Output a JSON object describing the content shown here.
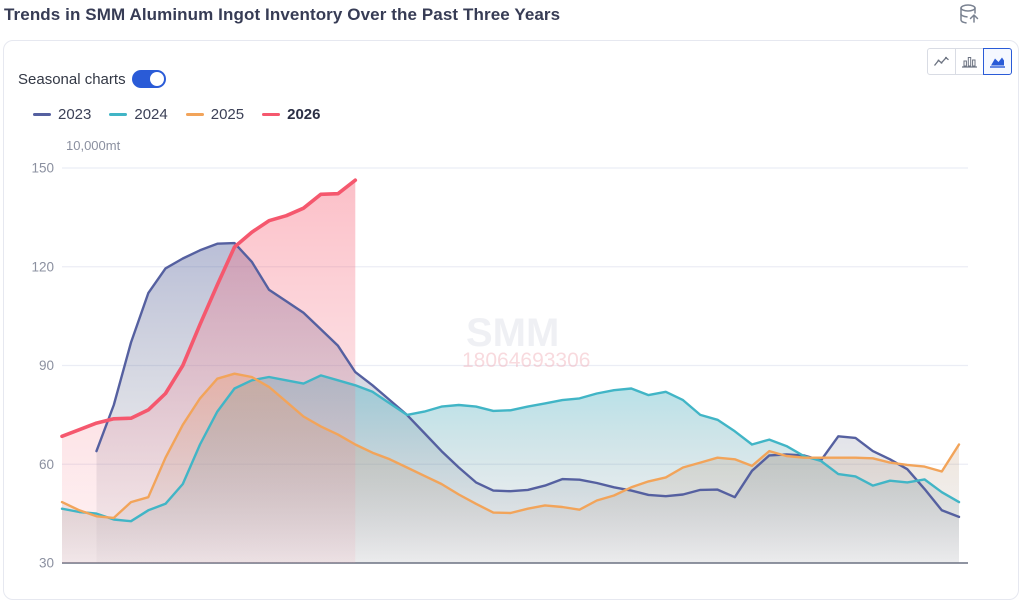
{
  "header": {
    "title": "Trends in SMM Aluminum Ingot Inventory Over the Past Three Years",
    "icon": "database-upload-icon"
  },
  "panel": {
    "seasonal_toggle": {
      "label": "Seasonal charts",
      "state": "on"
    },
    "chart_type_buttons": [
      {
        "name": "line-chart",
        "selected": false
      },
      {
        "name": "bar-chart",
        "selected": false
      },
      {
        "name": "area-chart",
        "selected": true
      }
    ]
  },
  "watermark": {
    "brand": "SMM",
    "id_number": "18064693306"
  },
  "chart_data": {
    "type": "area",
    "title": "Trends in SMM Aluminum Ingot Inventory Over the Past Three Years",
    "ylabel_unit": "10,000mt",
    "ylim": [
      30,
      150
    ],
    "yticks": [
      150,
      120,
      90,
      60,
      30
    ],
    "x_axis": "weeks of year (Jan-Dec), labels cropped out of view",
    "x_range_weeks": [
      0,
      52
    ],
    "grid": "horizontal only",
    "legend_position": "top-left",
    "series": [
      {
        "name": "2023",
        "color": "#5560a0",
        "emphasis": false,
        "start_week": 2,
        "values": [
          64,
          78,
          97,
          112,
          119.5,
          122.5,
          125,
          127,
          127.2,
          121.5,
          113,
          109.5,
          106,
          101,
          96,
          88,
          84,
          79.5,
          75,
          69.5,
          64,
          59,
          54.5,
          52,
          51.8,
          52.2,
          53.5,
          55.5,
          55.3,
          54.3,
          53,
          52,
          50.7,
          50.3,
          50.8,
          52.2,
          52.3,
          50,
          58,
          62.7,
          63,
          62.7,
          61.2,
          68.5,
          68,
          64,
          61.5,
          58.5,
          52.5,
          46,
          44
        ]
      },
      {
        "name": "2024",
        "color": "#41b5c6",
        "emphasis": false,
        "start_week": 0,
        "values": [
          46.5,
          45.5,
          45,
          43.2,
          42.7,
          46,
          48,
          54,
          66,
          76,
          83,
          85.5,
          86.5,
          85.5,
          84.5,
          87,
          85.5,
          84,
          82,
          78.5,
          75,
          76,
          77.5,
          78,
          77.5,
          76.2,
          76.4,
          77.5,
          78.5,
          79.5,
          80,
          81.5,
          82.5,
          83,
          81,
          82,
          79.5,
          75,
          73.5,
          70,
          66,
          67.5,
          65.5,
          62.5,
          61,
          57,
          56.3,
          53.5,
          55,
          54.5,
          55.4,
          51.5,
          48.5
        ]
      },
      {
        "name": "2025",
        "color": "#f2a45a",
        "emphasis": false,
        "start_week": 0,
        "values": [
          48.5,
          46,
          44.2,
          43.7,
          48.5,
          50,
          62,
          72,
          80,
          86,
          87.5,
          86.5,
          83.5,
          79,
          74.5,
          71.5,
          69,
          66,
          63.5,
          61.5,
          59,
          56.5,
          54,
          50.8,
          48,
          45.3,
          45.2,
          46.5,
          47.5,
          47,
          46.2,
          49,
          50.5,
          53,
          54.8,
          56,
          59,
          60.5,
          62,
          61.5,
          59.5,
          64,
          62.5,
          62,
          62,
          62,
          62,
          61.8,
          60.5,
          59.8,
          59.3,
          57.8,
          66
        ]
      },
      {
        "name": "2026",
        "color": "#f5586e",
        "emphasis": true,
        "start_week": 0,
        "values": [
          68.5,
          70.5,
          72.5,
          73.8,
          74,
          76.5,
          81.5,
          90,
          102.5,
          114.5,
          126,
          130.5,
          134,
          135.5,
          137.8,
          142,
          142.2,
          146.3
        ]
      }
    ],
    "colors": {
      "grid": "#ebedf5",
      "axis": "#8f94a1",
      "tick_text": "#8b90a0",
      "accent_blue": "#2a5bd7",
      "title_text": "#373c55"
    }
  }
}
